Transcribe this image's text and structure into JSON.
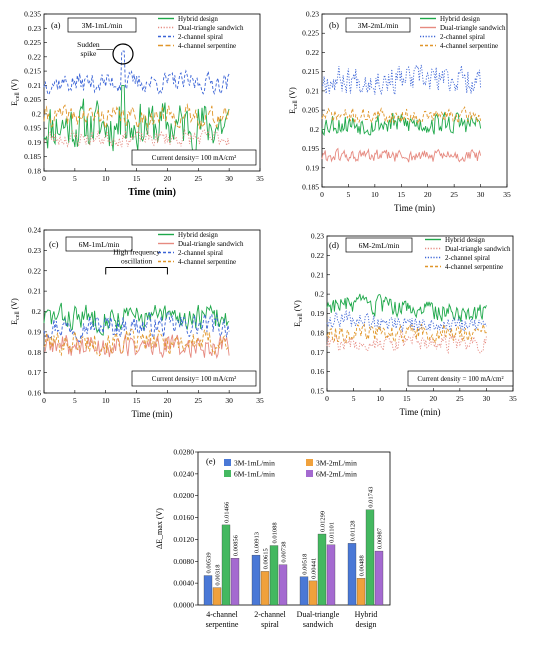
{
  "chart_data": [
    {
      "panel": "(a)",
      "type": "line",
      "box_label": "3M-1mL/min",
      "current_density_label": "Current density= 100 mA/cm²",
      "xlabel": "Time (min)",
      "ylabel": "E_cell (V)",
      "xlim": [
        0,
        35
      ],
      "ylim": [
        0.18,
        0.235
      ],
      "xticks": [
        0,
        5,
        10,
        15,
        20,
        25,
        30,
        35
      ],
      "yticks": [
        0.18,
        0.185,
        0.19,
        0.195,
        0.2,
        0.205,
        0.21,
        0.215,
        0.22,
        0.225,
        0.23,
        0.235
      ],
      "ytick_labels": [
        "0.18",
        "0.185",
        "0.19",
        "0.195",
        "0.2",
        "0.205",
        "0.21",
        "0.215",
        "0.22",
        "0.225",
        "0.23",
        "0.235"
      ],
      "annotation": "Sudden spike",
      "legend_position": "top-right",
      "series": [
        {
          "name": "Hybrid design",
          "color": "#1ea84a",
          "dash": "solid",
          "x_range": [
            0,
            30
          ],
          "mean": 0.196,
          "amplitude": 0.006,
          "seed": 11,
          "spike": {
            "x": 12.8,
            "y": 0.21
          }
        },
        {
          "name": "Dual-triangle sandwich",
          "color": "#e68a80",
          "dash": "dot",
          "x_range": [
            0,
            30
          ],
          "mean": 0.1915,
          "amplitude": 0.002,
          "seed": 23
        },
        {
          "name": "2-channel spiral",
          "color": "#3a63d6",
          "dash": "dash",
          "x_range": [
            0,
            30
          ],
          "mean": 0.211,
          "amplitude": 0.0025,
          "seed": 37,
          "spike": {
            "x": 12.8,
            "y": 0.222
          }
        },
        {
          "name": "4-channel serpentine",
          "color": "#e0962a",
          "dash": "longdash",
          "x_range": [
            0,
            30
          ],
          "mean": 0.199,
          "amplitude": 0.0025,
          "seed": 41
        }
      ]
    },
    {
      "panel": "(b)",
      "type": "line",
      "box_label": "3M-2mL/min",
      "xlabel": "Time (min)",
      "ylabel": "E_cell (V)",
      "xlim": [
        0,
        35
      ],
      "ylim": [
        0.185,
        0.23
      ],
      "xticks": [
        0,
        5,
        10,
        15,
        20,
        25,
        30,
        35
      ],
      "yticks": [
        0.185,
        0.19,
        0.195,
        0.2,
        0.205,
        0.21,
        0.215,
        0.22,
        0.225,
        0.23
      ],
      "ytick_labels": [
        "0.185",
        "0.19",
        "0.195",
        "0.2",
        "0.205",
        "0.21",
        "0.215",
        "0.22",
        "0.225",
        "0.23"
      ],
      "legend_position": "top-right",
      "series": [
        {
          "name": "Hybrid design",
          "color": "#1ea84a",
          "dash": "solid",
          "x_range": [
            0,
            30
          ],
          "mean": 0.2015,
          "amplitude": 0.002,
          "seed": 53
        },
        {
          "name": "Dual-triangle sandwich",
          "color": "#e68a80",
          "dash": "solid",
          "x_range": [
            0,
            30
          ],
          "mean": 0.193,
          "amplitude": 0.0012,
          "seed": 61
        },
        {
          "name": "2-channel spiral",
          "color": "#3a63d6",
          "dash": "dot",
          "x_range": [
            0,
            30
          ],
          "mean": 0.213,
          "amplitude": 0.0025,
          "seed": 67
        },
        {
          "name": "4-channel serpentine",
          "color": "#e0962a",
          "dash": "dash",
          "x_range": [
            0,
            30
          ],
          "mean": 0.2035,
          "amplitude": 0.0013,
          "seed": 71
        }
      ]
    },
    {
      "panel": "(c)",
      "type": "line",
      "box_label": "6M-1mL/min",
      "current_density_label": "Current density= 100 mA/cm²",
      "xlabel": "Time (min)",
      "ylabel": "E_cell (V)",
      "xlim": [
        0,
        35
      ],
      "ylim": [
        0.16,
        0.24
      ],
      "xticks": [
        0,
        5,
        10,
        15,
        20,
        25,
        30,
        35
      ],
      "yticks": [
        0.16,
        0.17,
        0.18,
        0.19,
        0.2,
        0.21,
        0.22,
        0.23,
        0.24
      ],
      "ytick_labels": [
        "0.16",
        "0.17",
        "0.18",
        "0.19",
        "0.2",
        "0.21",
        "0.22",
        "0.23",
        "0.24"
      ],
      "annotation_lines": [
        "High frequency",
        "oscillation"
      ],
      "legend_position": "top-right",
      "series": [
        {
          "name": "Hybrid design",
          "color": "#1ea84a",
          "dash": "solid",
          "x_range": [
            0,
            30
          ],
          "mean": 0.197,
          "amplitude": 0.0045,
          "seed": 83
        },
        {
          "name": "Dual-triangle sandwich",
          "color": "#e68a80",
          "dash": "solid",
          "x_range": [
            0,
            30
          ],
          "mean": 0.183,
          "amplitude": 0.004,
          "seed": 89
        },
        {
          "name": "2-channel spiral",
          "color": "#3a63d6",
          "dash": "dash",
          "x_range": [
            0,
            30
          ],
          "mean": 0.193,
          "amplitude": 0.004,
          "seed": 97
        },
        {
          "name": "4-channel serpentine",
          "color": "#e0962a",
          "dash": "dash",
          "x_range": [
            0,
            30
          ],
          "mean": 0.185,
          "amplitude": 0.004,
          "seed": 101
        }
      ]
    },
    {
      "panel": "(d)",
      "type": "line",
      "box_label": "6M-2mL/min",
      "current_density_label": "Current density = 100 mA/cm²",
      "xlabel": "Time (min)",
      "ylabel": "E_cell (V)",
      "xlim": [
        0,
        35
      ],
      "ylim": [
        0.15,
        0.23
      ],
      "xticks": [
        0,
        5,
        10,
        15,
        20,
        25,
        30,
        35
      ],
      "yticks": [
        0.15,
        0.16,
        0.17,
        0.18,
        0.19,
        0.2,
        0.21,
        0.22,
        0.23
      ],
      "ytick_labels": [
        "0.15",
        "0.16",
        "0.17",
        "0.18",
        "0.19",
        "0.2",
        "0.21",
        "0.22",
        "0.23"
      ],
      "legend_position": "top-right",
      "series": [
        {
          "name": "Hybrid design",
          "color": "#1ea84a",
          "dash": "solid",
          "x_range": [
            0,
            30
          ],
          "mean": 0.195,
          "amplitude": 0.0035,
          "trend": -0.005,
          "seed": 103
        },
        {
          "name": "Dual-triangle sandwich",
          "color": "#e68a80",
          "dash": "dot",
          "x_range": [
            0,
            30
          ],
          "mean": 0.175,
          "amplitude": 0.003,
          "seed": 107
        },
        {
          "name": "2-channel spiral",
          "color": "#3a63d6",
          "dash": "dot",
          "x_range": [
            0,
            30
          ],
          "mean": 0.187,
          "amplitude": 0.003,
          "trend": -0.004,
          "seed": 109
        },
        {
          "name": "4-channel serpentine",
          "color": "#e0962a",
          "dash": "dash",
          "x_range": [
            0,
            30
          ],
          "mean": 0.18,
          "amplitude": 0.003,
          "seed": 113
        }
      ]
    },
    {
      "panel": "(e)",
      "type": "bar",
      "ylabel": "ΔE_max (V)",
      "categories": [
        "4-channel serpentine",
        "2-channel spiral",
        "Dual-triangle sandwich",
        "Hybrid design"
      ],
      "category_label_lines": [
        [
          "4-channel",
          "serpentine"
        ],
        [
          "2-channel",
          "spiral"
        ],
        [
          "Dual-triangle",
          "sandwich"
        ],
        [
          "Hybrid",
          "design"
        ]
      ],
      "ylim": [
        0,
        0.028
      ],
      "yticks": [
        0,
        0.004,
        0.008,
        0.012,
        0.016,
        0.02,
        0.024,
        0.028
      ],
      "ytick_labels": [
        "0.0000",
        "0.0040",
        "0.0080",
        "0.0120",
        "0.0160",
        "0.0200",
        "0.0240",
        "0.0280"
      ],
      "legend_position": "top",
      "series": [
        {
          "name": "3M-1mL/min",
          "color": "#4a78d6",
          "values": [
            0.00539,
            0.00913,
            0.00518,
            0.01128
          ],
          "labels": [
            "0.00539",
            "0.00913",
            "0.00518",
            "0.01128"
          ]
        },
        {
          "name": "3M-2mL/min",
          "color": "#f0a13c",
          "values": [
            0.00318,
            0.00615,
            0.00441,
            0.00488
          ],
          "labels": [
            "0.00318",
            "0.00615",
            "0.00441",
            "0.00488"
          ]
        },
        {
          "name": "6M-1mL/min",
          "color": "#44b860",
          "values": [
            0.01466,
            0.01088,
            0.01299,
            0.01743
          ],
          "labels": [
            "0.01466",
            "0.01088",
            "0.01299",
            "0.01743"
          ]
        },
        {
          "name": "6M-2mL/min",
          "color": "#a46ad0",
          "values": [
            0.00856,
            0.00738,
            0.01101,
            0.00987
          ],
          "labels": [
            "0.00856",
            "0.00738",
            "0.01101",
            "0.00987"
          ]
        }
      ]
    }
  ]
}
